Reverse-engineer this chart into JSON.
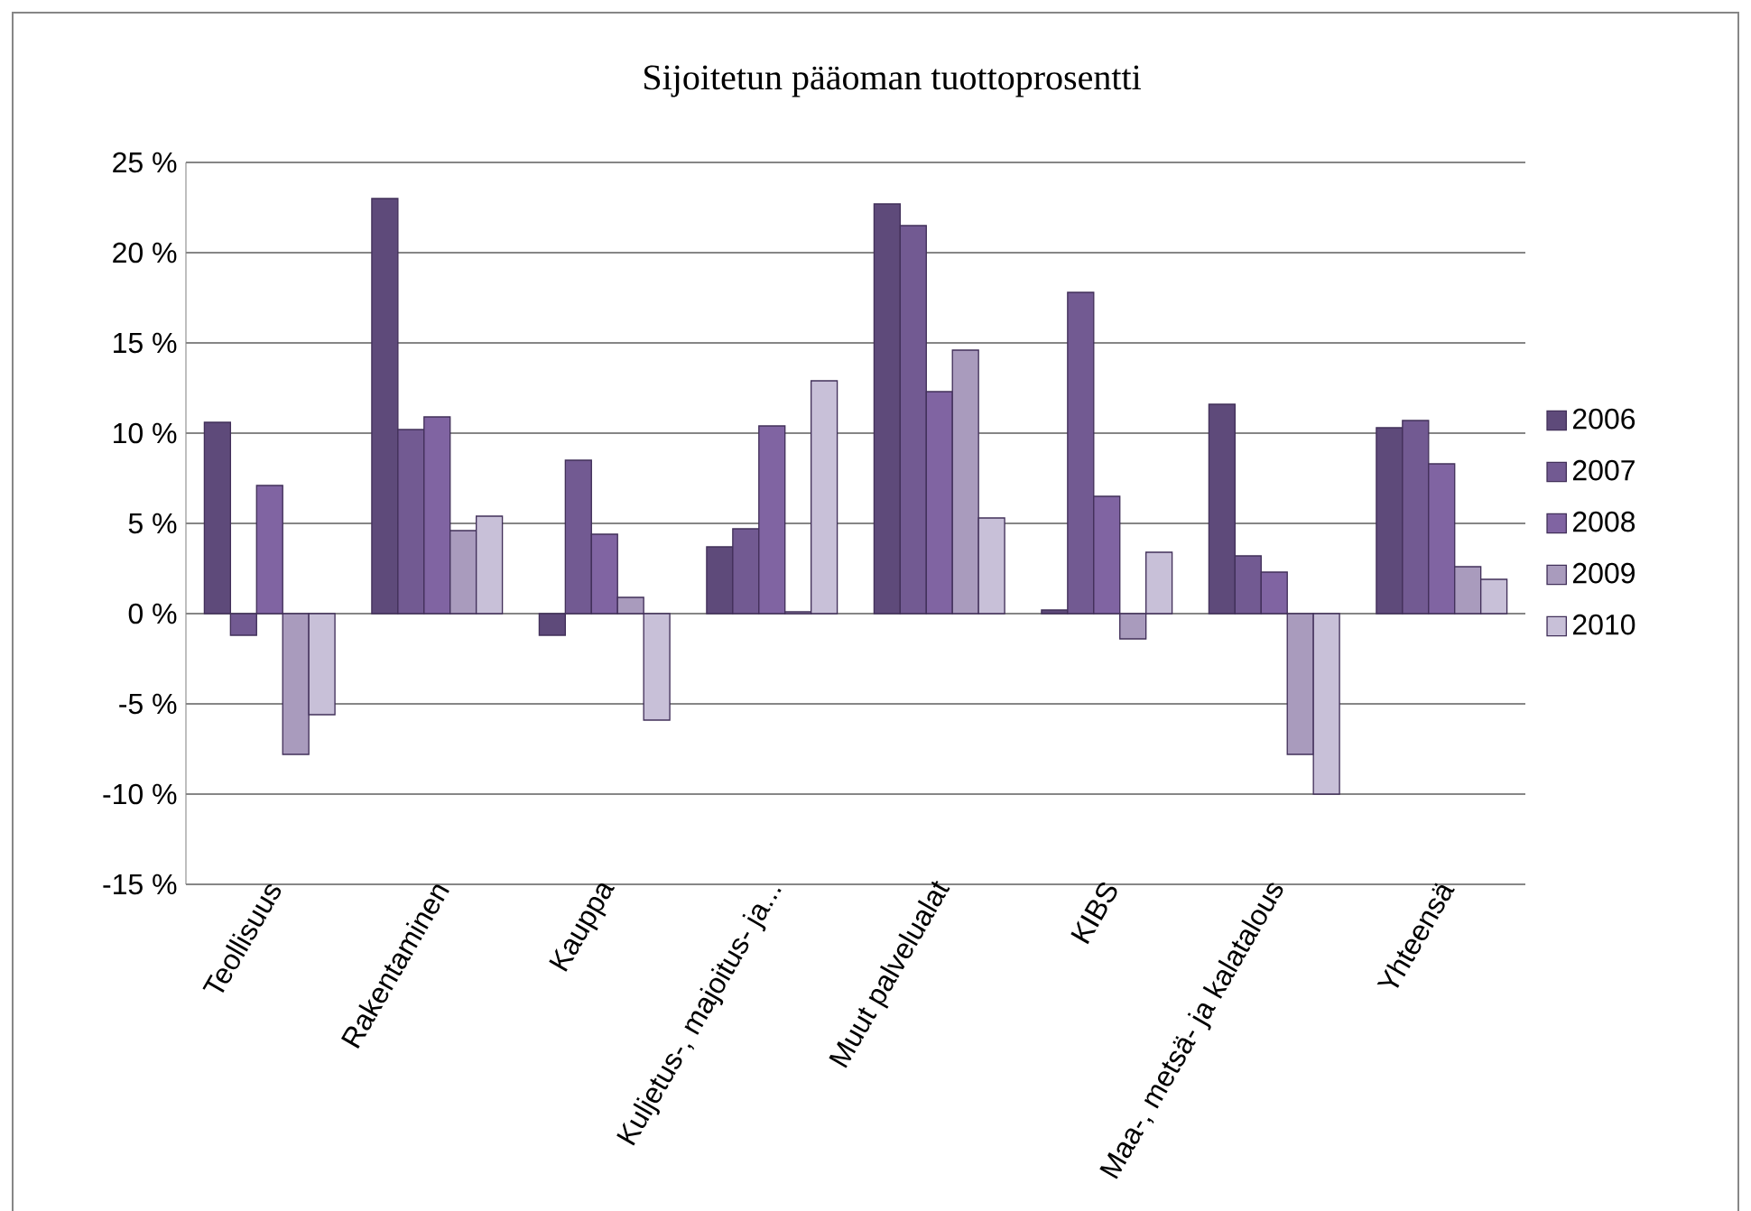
{
  "chart_data": {
    "type": "bar",
    "title": "Sijoitetun pääoman tuottoprosentti",
    "categories": [
      "Teollisuus",
      "Rakentaminen",
      "Kauppa",
      "Kuljetus-, majoitus- ja...",
      "Muut palvelualat",
      "KIBS",
      "Maa-, metsä- ja kalatalous",
      "Yhteensä"
    ],
    "series": [
      {
        "name": "2006",
        "color": "#5e4a7a",
        "values": [
          10.6,
          23.0,
          -1.2,
          3.7,
          22.7,
          0.2,
          11.6,
          10.3
        ]
      },
      {
        "name": "2007",
        "color": "#725a92",
        "values": [
          -1.2,
          10.2,
          8.5,
          4.7,
          21.5,
          17.8,
          3.2,
          10.7
        ]
      },
      {
        "name": "2008",
        "color": "#8064a2",
        "values": [
          7.1,
          10.9,
          4.4,
          10.4,
          12.3,
          6.5,
          2.3,
          8.3
        ]
      },
      {
        "name": "2009",
        "color": "#a99bbd",
        "values": [
          -7.8,
          4.6,
          0.9,
          0.1,
          14.6,
          -1.4,
          -7.8,
          2.6
        ]
      },
      {
        "name": "2010",
        "color": "#c8c0d8",
        "values": [
          -5.6,
          5.4,
          -5.9,
          12.9,
          5.3,
          3.4,
          -10.0,
          1.9
        ]
      }
    ],
    "ylim": [
      -15,
      25
    ],
    "yticks": [
      {
        "value": -15,
        "label": "-15 %"
      },
      {
        "value": -10,
        "label": "-10 %"
      },
      {
        "value": -5,
        "label": "-5 %"
      },
      {
        "value": 0,
        "label": "0 %"
      },
      {
        "value": 5,
        "label": "5 %"
      },
      {
        "value": 10,
        "label": "10 %"
      },
      {
        "value": 15,
        "label": "15 %"
      },
      {
        "value": 20,
        "label": "20 %"
      },
      {
        "value": 25,
        "label": "25 %"
      }
    ],
    "grid": "y",
    "legend": "right"
  }
}
